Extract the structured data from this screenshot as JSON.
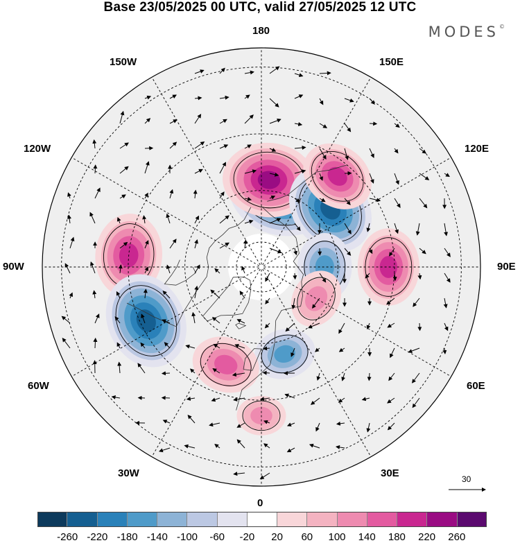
{
  "title": "Base 23/05/2025 00 UTC, valid 27/05/2025 12 UTC",
  "brand": "MODES",
  "brand_mark": "©",
  "longitude_labels": {
    "n180": "180",
    "w150": "150W",
    "e150": "150E",
    "w120": "120W",
    "e120": "120E",
    "w90": "90W",
    "e90": "90E",
    "w60": "60W",
    "e60": "60E",
    "w30": "30W",
    "e30": "30E",
    "zero": "0"
  },
  "reference_vector_label": "30",
  "colorbar": {
    "ticks": [
      "-260",
      "-220",
      "-180",
      "-140",
      "-100",
      "-60",
      "-20",
      "20",
      "60",
      "100",
      "140",
      "180",
      "220",
      "260"
    ],
    "colors": [
      "#0d3a5c",
      "#155f91",
      "#2a81b9",
      "#4f9bc9",
      "#8db3d6",
      "#bcc8e3",
      "#e3e3ef",
      "#ffffff",
      "#f8d6d9",
      "#f4b3c1",
      "#ee8bb0",
      "#e35ba0",
      "#c92790",
      "#9a0c83",
      "#5b0a6f"
    ]
  },
  "map": {
    "projection": "north polar stereographic",
    "meridians_every_deg": 30,
    "parallels": "dashed",
    "anomalies": [
      {
        "lon": 165,
        "lat": 60,
        "sign": "negative",
        "strength": 260
      },
      {
        "lon": 175,
        "lat": 56,
        "sign": "positive",
        "strength": 220
      },
      {
        "lon": 130,
        "lat": 55,
        "sign": "negative",
        "strength": 220
      },
      {
        "lon": 140,
        "lat": 45,
        "sign": "positive",
        "strength": 160
      },
      {
        "lon": 90,
        "lat": 42,
        "sign": "positive",
        "strength": 170
      },
      {
        "lon": 90,
        "lat": 65,
        "sign": "negative",
        "strength": 140
      },
      {
        "lon": 60,
        "lat": 65,
        "sign": "positive",
        "strength": 110
      },
      {
        "lon": 15,
        "lat": 55,
        "sign": "negative",
        "strength": 120
      },
      {
        "lon": -95,
        "lat": 40,
        "sign": "positive",
        "strength": 190
      },
      {
        "lon": -65,
        "lat": 42,
        "sign": "negative",
        "strength": 230
      },
      {
        "lon": -20,
        "lat": 50,
        "sign": "positive",
        "strength": 140
      },
      {
        "lon": 0,
        "lat": 35,
        "sign": "positive",
        "strength": 80
      }
    ]
  }
}
